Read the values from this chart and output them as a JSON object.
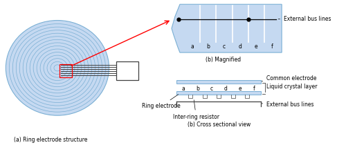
{
  "bg_color": "#ffffff",
  "light_blue": "#c5d9f1",
  "ring_color": "#7aafd4",
  "dark_gray": "#404040",
  "electrode_labels": [
    "a",
    "b",
    "c",
    "d",
    "e",
    "f"
  ],
  "fig_label_a": "(a) Ring electrode structure",
  "fig_label_b_mag": "(b) Magnified",
  "fig_label_b_cross": "(b) Cross sectional view",
  "label_external_bus": "External bus lines",
  "label_common": "Common electrode",
  "label_liquid": "Liquid crystal layer",
  "label_external_bus2": "External bus lines",
  "label_ring": "Ring electrode",
  "label_inter": "Inter-ring resistor"
}
